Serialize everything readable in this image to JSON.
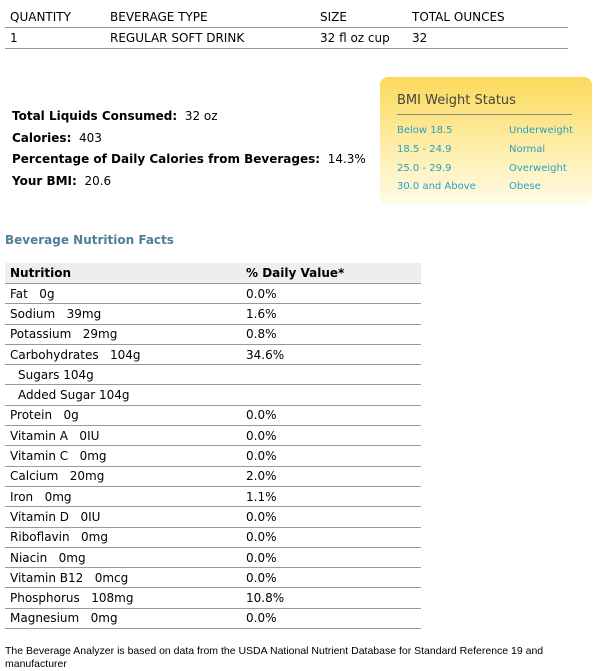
{
  "order_table": {
    "headers": [
      "QUANTITY",
      "BEVERAGE TYPE",
      "SIZE",
      "TOTAL OUNCES"
    ],
    "rows": [
      [
        "1",
        "REGULAR SOFT DRINK",
        "32 fl oz cup",
        "32"
      ]
    ]
  },
  "summary": {
    "liquids_label": "Total Liquids Consumed:",
    "liquids_value": "32 oz",
    "calories_label": "Calories:",
    "calories_value": "403",
    "pct_label": "Percentage of Daily Calories from Beverages:",
    "pct_value": "14.3%",
    "bmi_label": "Your BMI:",
    "bmi_value": "20.6"
  },
  "bmi_status": {
    "title": "BMI Weight Status",
    "rows": [
      {
        "range": "Below 18.5",
        "status": "Underweight"
      },
      {
        "range": "18.5 - 24.9",
        "status": "Normal"
      },
      {
        "range": "25.0 - 29.9",
        "status": "Overweight"
      },
      {
        "range": "30.0 and Above",
        "status": "Obese"
      }
    ]
  },
  "nutrition": {
    "title": "Beverage Nutrition Facts",
    "headers": [
      "Nutrition",
      "% Daily Value*"
    ],
    "rows": [
      {
        "name": "Fat   0g",
        "dv": "0.0%"
      },
      {
        "name": "Sodium   39mg",
        "dv": "1.6%"
      },
      {
        "name": "Potassium   29mg",
        "dv": "0.8%"
      },
      {
        "name": "Carbohydrates   104g",
        "dv": "34.6%"
      },
      {
        "name": "Sugars 104g",
        "dv": "",
        "indent": true
      },
      {
        "name": "Added Sugar 104g",
        "dv": "",
        "indent": true
      },
      {
        "name": "Protein   0g",
        "dv": "0.0%"
      },
      {
        "name": "Vitamin A   0IU",
        "dv": "0.0%"
      },
      {
        "name": "Vitamin C   0mg",
        "dv": "0.0%"
      },
      {
        "name": "Calcium   20mg",
        "dv": "2.0%"
      },
      {
        "name": "Iron   0mg",
        "dv": "1.1%"
      },
      {
        "name": "Vitamin D   0IU",
        "dv": "0.0%"
      },
      {
        "name": "Riboflavin   0mg",
        "dv": "0.0%"
      },
      {
        "name": "Niacin   0mg",
        "dv": "0.0%"
      },
      {
        "name": "Vitamin B12   0mcg",
        "dv": "0.0%"
      },
      {
        "name": "Phosphorus   108mg",
        "dv": "10.8%"
      },
      {
        "name": "Magnesium   0mg",
        "dv": "0.0%"
      }
    ]
  },
  "footnote": "The Beverage Analyzer is based on data from the USDA National Nutrient Database for Standard Reference 19 and manufacturer"
}
